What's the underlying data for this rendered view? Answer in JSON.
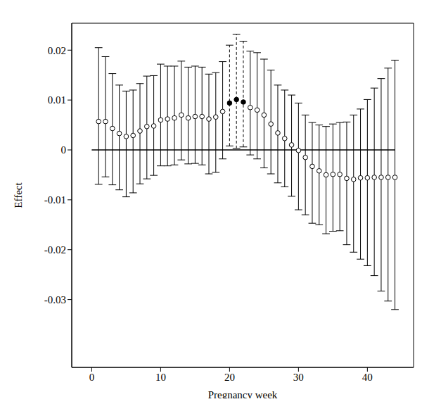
{
  "chart_data": {
    "type": "scatter",
    "xlabel": "Pregnancy week",
    "ylabel": "Effect",
    "x": [
      1,
      2,
      3,
      4,
      5,
      6,
      7,
      8,
      9,
      10,
      11,
      12,
      13,
      14,
      15,
      16,
      17,
      18,
      19,
      20,
      21,
      22,
      23,
      24,
      25,
      26,
      27,
      28,
      29,
      30,
      31,
      32,
      33,
      34,
      35,
      36,
      37,
      38,
      39,
      40,
      41,
      42,
      43,
      44
    ],
    "xlim": [
      -2.9,
      46.7
    ],
    "xticks": [
      0,
      10,
      20,
      30,
      40
    ],
    "ylim": [
      -0.0436,
      0.0254
    ],
    "yticks": [
      -0.03,
      -0.02,
      -0.01,
      0,
      0.01,
      0.02
    ],
    "grid": false,
    "reference_line": {
      "y": 0,
      "x": [
        0,
        44
      ]
    },
    "series": [
      {
        "color": "#000000",
        "marker": "open",
        "line_style": "solid",
        "values": [
          0.0057,
          0.0057,
          0.0043,
          0.0033,
          0.0027,
          0.0029,
          0.0038,
          0.0047,
          0.0048,
          0.006,
          0.0062,
          0.0064,
          0.007,
          0.0064,
          0.0067,
          0.0067,
          0.0062,
          0.0066,
          0.0077,
          null,
          null,
          null,
          0.0085,
          0.008,
          0.007,
          0.0052,
          0.0034,
          0.0023,
          0.001,
          -0.0001,
          -0.0015,
          -0.0033,
          -0.0042,
          -0.005,
          -0.0049,
          -0.0049,
          -0.0057,
          -0.0059,
          -0.0056,
          -0.0056,
          -0.0055,
          -0.0055,
          -0.0055,
          -0.0055
        ],
        "lower": [
          -0.0069,
          -0.0054,
          -0.007,
          -0.008,
          -0.0094,
          -0.0086,
          -0.0068,
          -0.0058,
          -0.0051,
          -0.0032,
          -0.0032,
          -0.003,
          -0.002,
          -0.0028,
          -0.0027,
          -0.003,
          -0.0048,
          -0.0045,
          -0.0018,
          null,
          null,
          null,
          -0.001,
          -0.0018,
          -0.0036,
          -0.0048,
          -0.0066,
          -0.0074,
          -0.0093,
          -0.012,
          -0.013,
          -0.0147,
          -0.015,
          -0.0168,
          -0.0163,
          -0.0162,
          -0.019,
          -0.0205,
          -0.0219,
          -0.0232,
          -0.0252,
          -0.0283,
          -0.0303,
          -0.032
        ],
        "upper": [
          0.0205,
          0.0187,
          0.0153,
          0.013,
          0.0118,
          0.012,
          0.0133,
          0.0148,
          0.0149,
          0.0172,
          0.0168,
          0.0168,
          0.0178,
          0.0166,
          0.0168,
          0.0166,
          0.0152,
          0.0155,
          0.0177,
          null,
          null,
          null,
          0.0198,
          0.0195,
          0.0182,
          0.016,
          0.013,
          0.012,
          0.011,
          0.0094,
          0.007,
          0.0055,
          0.005,
          0.0047,
          0.0052,
          0.0055,
          0.0056,
          0.007,
          0.0082,
          0.0101,
          0.0124,
          0.0143,
          0.0164,
          0.018
        ]
      },
      {
        "color": "#000000",
        "marker": "filled",
        "line_style": "dashed",
        "values": [
          null,
          null,
          null,
          null,
          null,
          null,
          null,
          null,
          null,
          null,
          null,
          null,
          null,
          null,
          null,
          null,
          null,
          null,
          null,
          0.0094,
          0.0101,
          0.0096,
          null,
          null,
          null,
          null,
          null,
          null,
          null,
          null,
          null,
          null,
          null,
          null,
          null,
          null,
          null,
          null,
          null,
          null,
          null,
          null,
          null,
          null
        ],
        "lower": [
          null,
          null,
          null,
          null,
          null,
          null,
          null,
          null,
          null,
          null,
          null,
          null,
          null,
          null,
          null,
          null,
          null,
          null,
          null,
          0.0008,
          0.0003,
          0.0006,
          null,
          null,
          null,
          null,
          null,
          null,
          null,
          null,
          null,
          null,
          null,
          null,
          null,
          null,
          null,
          null,
          null,
          null,
          null,
          null,
          null,
          null
        ],
        "upper": [
          null,
          null,
          null,
          null,
          null,
          null,
          null,
          null,
          null,
          null,
          null,
          null,
          null,
          null,
          null,
          null,
          null,
          null,
          null,
          0.021,
          0.0232,
          0.0218,
          null,
          null,
          null,
          null,
          null,
          null,
          null,
          null,
          null,
          null,
          null,
          null,
          null,
          null,
          null,
          null,
          null,
          null,
          null,
          null,
          null,
          null
        ]
      }
    ]
  }
}
